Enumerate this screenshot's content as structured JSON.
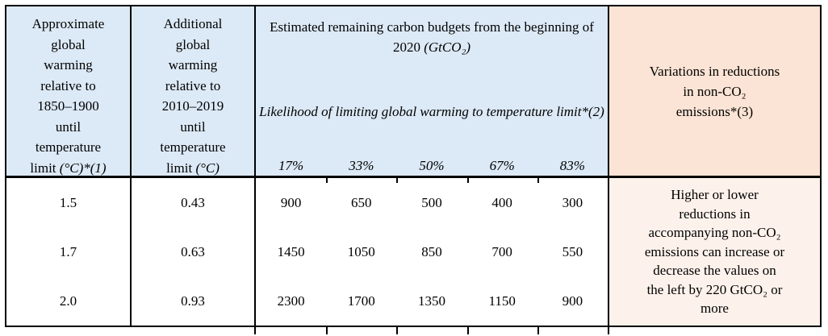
{
  "table": {
    "header": {
      "approx_warming": {
        "lines": [
          "Approximate",
          "global",
          "warming",
          "relative to",
          "1850–1900",
          "until",
          "temperature"
        ],
        "last_prefix": "limit ",
        "last_unit": "(°C)*(1)"
      },
      "additional_warming": {
        "lines": [
          "Additional",
          "global",
          "warming",
          "relative to",
          "2010–2019",
          "until",
          "temperature"
        ],
        "last_prefix": "limit ",
        "last_unit": "(°C)"
      },
      "budgets": {
        "title_line1": "Estimated remaining carbon budgets",
        "title_line2_prefix": "from the beginning of 2020 ",
        "title_line2_unit": "(GtCO₂)",
        "subtitle_line1": "Likelihood of limiting global warming",
        "subtitle_line2": "to temperature limit*(2)",
        "likelihoods": [
          "17%",
          "33%",
          "50%",
          "67%",
          "83%"
        ]
      },
      "variations": {
        "lines": [
          "Variations in reductions",
          "in non-CO₂",
          "emissions*(3)"
        ]
      }
    },
    "rows": [
      {
        "approx": "1.5",
        "additional": "0.43",
        "budgets": [
          "900",
          "650",
          "500",
          "400",
          "300"
        ]
      },
      {
        "approx": "1.7",
        "additional": "0.63",
        "budgets": [
          "1450",
          "1050",
          "850",
          "700",
          "550"
        ]
      },
      {
        "approx": "2.0",
        "additional": "0.93",
        "budgets": [
          "2300",
          "1700",
          "1350",
          "1150",
          "900"
        ]
      }
    ],
    "note_lines": [
      "Higher or lower",
      "reductions in",
      "accompanying non-CO₂",
      "emissions can increase or",
      "decrease the values on",
      "the left by 220 GtCO₂ or",
      "more"
    ]
  },
  "colors": {
    "header_blue": "#dce9f6",
    "header_peach": "#fbe4d5",
    "note_peach": "#fdf2eb",
    "border": "#000000"
  }
}
